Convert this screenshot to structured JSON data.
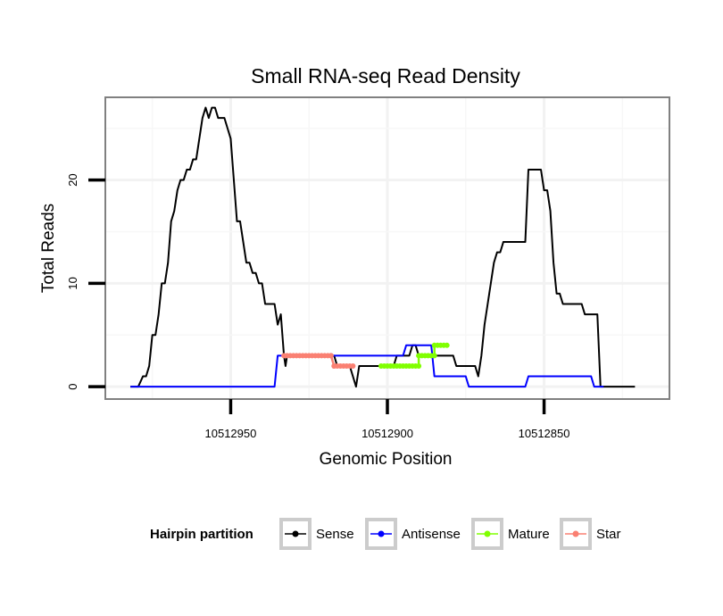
{
  "chart_data": {
    "type": "line",
    "title": "Small RNA-seq Read Density",
    "xlabel": "Genomic Position",
    "ylabel": "Total Reads",
    "x_reversed": true,
    "xlim": [
      10512990,
      10512810
    ],
    "ylim": [
      -1.2,
      28
    ],
    "x_ticks": [
      10512950,
      10512900,
      10512850
    ],
    "x_tick_labels": [
      "10512950",
      "10512900",
      "10512850"
    ],
    "y_ticks": [
      0,
      10,
      20
    ],
    "y_tick_labels": [
      "0",
      "10",
      "20"
    ],
    "grid": true,
    "legend": {
      "title": "Hairpin partition",
      "position": "bottom",
      "entries": [
        "Sense",
        "Antisense",
        "Mature",
        "Star"
      ]
    },
    "series": [
      {
        "name": "Sense",
        "color": "#000000",
        "points": [
          [
            10512982,
            0
          ],
          [
            10512979.5,
            0
          ],
          [
            10512978,
            1
          ],
          [
            10512977,
            1
          ],
          [
            10512976,
            2
          ],
          [
            10512975,
            5
          ],
          [
            10512974,
            5
          ],
          [
            10512973,
            7
          ],
          [
            10512972,
            10
          ],
          [
            10512971,
            10
          ],
          [
            10512970,
            12
          ],
          [
            10512969,
            16
          ],
          [
            10512968,
            17
          ],
          [
            10512967,
            19
          ],
          [
            10512966,
            20
          ],
          [
            10512965,
            20
          ],
          [
            10512964,
            21
          ],
          [
            10512963,
            21
          ],
          [
            10512962,
            22
          ],
          [
            10512961,
            22
          ],
          [
            10512960,
            24
          ],
          [
            10512959,
            26
          ],
          [
            10512958,
            27
          ],
          [
            10512957,
            26
          ],
          [
            10512956,
            27
          ],
          [
            10512955,
            27
          ],
          [
            10512954,
            26
          ],
          [
            10512953,
            26
          ],
          [
            10512952,
            26
          ],
          [
            10512951,
            25
          ],
          [
            10512950,
            24
          ],
          [
            10512949,
            20
          ],
          [
            10512948,
            16
          ],
          [
            10512947,
            16
          ],
          [
            10512946,
            14
          ],
          [
            10512945,
            12
          ],
          [
            10512944,
            12
          ],
          [
            10512943,
            11
          ],
          [
            10512942,
            11
          ],
          [
            10512941,
            10
          ],
          [
            10512940,
            10
          ],
          [
            10512939,
            8
          ],
          [
            10512938,
            8
          ],
          [
            10512937,
            8
          ],
          [
            10512936,
            8
          ],
          [
            10512935,
            6
          ],
          [
            10512934,
            7
          ],
          [
            10512933,
            3
          ],
          [
            10512932.5,
            2
          ],
          [
            10512932,
            3
          ],
          [
            10512917,
            3
          ],
          [
            10512916,
            2
          ],
          [
            10512912,
            2
          ],
          [
            10512911,
            1
          ],
          [
            10512910,
            0
          ],
          [
            10512909,
            2
          ],
          [
            10512908,
            2
          ],
          [
            10512898,
            2
          ],
          [
            10512897,
            3
          ],
          [
            10512893,
            3
          ],
          [
            10512892,
            4
          ],
          [
            10512891,
            4
          ],
          [
            10512890,
            3
          ],
          [
            10512879,
            3
          ],
          [
            10512878,
            2
          ],
          [
            10512872,
            2
          ],
          [
            10512871,
            1
          ],
          [
            10512870,
            3
          ],
          [
            10512869,
            6
          ],
          [
            10512868,
            8
          ],
          [
            10512867,
            10
          ],
          [
            10512866,
            12
          ],
          [
            10512865,
            13
          ],
          [
            10512864,
            13
          ],
          [
            10512863,
            14
          ],
          [
            10512862,
            14
          ],
          [
            10512856,
            14
          ],
          [
            10512855,
            21
          ],
          [
            10512851,
            21
          ],
          [
            10512850,
            19
          ],
          [
            10512849,
            19
          ],
          [
            10512848,
            17
          ],
          [
            10512847,
            12
          ],
          [
            10512846,
            9
          ],
          [
            10512845,
            9
          ],
          [
            10512844,
            8
          ],
          [
            10512838,
            8
          ],
          [
            10512837,
            7
          ],
          [
            10512833,
            7
          ],
          [
            10512832,
            0
          ],
          [
            10512821,
            0
          ]
        ]
      },
      {
        "name": "Antisense",
        "color": "#0000ff",
        "points": [
          [
            10512982,
            0
          ],
          [
            10512936,
            0
          ],
          [
            10512935,
            3
          ],
          [
            10512895,
            3
          ],
          [
            10512894,
            4
          ],
          [
            10512886,
            4
          ],
          [
            10512885,
            1
          ],
          [
            10512875,
            1
          ],
          [
            10512874,
            0
          ],
          [
            10512856,
            0
          ],
          [
            10512855,
            1
          ],
          [
            10512835,
            1
          ],
          [
            10512834,
            0
          ],
          [
            10512831,
            0
          ]
        ]
      },
      {
        "name": "Mature",
        "color": "#80ff00",
        "points": [
          [
            10512902,
            2
          ],
          [
            10512890,
            2
          ],
          [
            10512890,
            3
          ],
          [
            10512885,
            3
          ],
          [
            10512885,
            4
          ],
          [
            10512881,
            4
          ]
        ]
      },
      {
        "name": "Star",
        "color": "#fa8072",
        "points": [
          [
            10512933,
            3
          ],
          [
            10512918,
            3
          ],
          [
            10512917,
            2
          ],
          [
            10512911,
            2
          ]
        ]
      }
    ]
  }
}
